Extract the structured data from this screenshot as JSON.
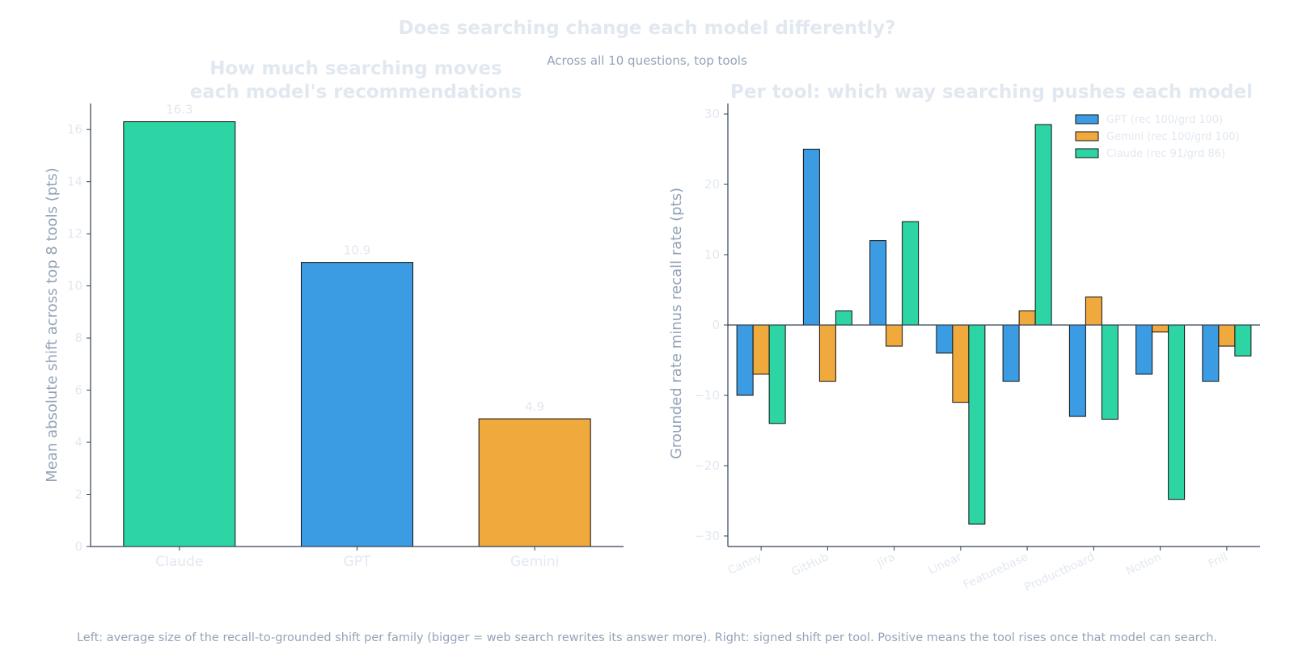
{
  "suptitle": "Does searching change each model differently?",
  "subtitle": "Across all 10 questions, top tools",
  "footnote": "Left: average size of the recall-to-grounded shift per family (bigger = web search rewrites its answer more). Right: signed shift per tool. Positive means the tool rises once that model can search.",
  "colors": {
    "GPT": "#3b9ce3",
    "Gemini": "#f0a93c",
    "Claude": "#2dd4a4"
  },
  "chart_data": [
    {
      "type": "bar",
      "title": "How much searching moves each model's recommendations",
      "title_lines": [
        "How much searching moves",
        "each model's recommendations"
      ],
      "ylabel": "Mean absolute shift across top 8 tools (pts)",
      "xlabel": "",
      "categories": [
        "Claude",
        "GPT",
        "Gemini"
      ],
      "values": [
        16.3,
        10.9,
        4.9
      ],
      "data_labels": [
        "16.3",
        "10.9",
        "4.9"
      ],
      "ylim": [
        0,
        17
      ],
      "yticks": [
        0,
        2,
        4,
        6,
        8,
        10,
        12,
        14,
        16
      ],
      "grid": false
    },
    {
      "type": "bar",
      "title": "Per tool: which way searching pushes each model",
      "ylabel": "Grounded rate minus recall rate (pts)",
      "xlabel": "",
      "categories": [
        "Canny",
        "GitHub",
        "Jira",
        "Linear",
        "Featurebase",
        "Productboard",
        "Notion",
        "Frill"
      ],
      "series": [
        {
          "name": "GPT (rec 100/grd 100)",
          "family": "GPT",
          "values": [
            -10,
            25,
            12,
            -4,
            -8,
            -13,
            -7,
            -8
          ]
        },
        {
          "name": "Gemini (rec 100/grd 100)",
          "family": "Gemini",
          "values": [
            -7,
            -8,
            -3,
            -11,
            2,
            4,
            -1,
            -3
          ]
        },
        {
          "name": "Claude (rec 91/grd 86)",
          "family": "Claude",
          "values": [
            -14,
            2,
            14.7,
            -28.3,
            28.5,
            -13.4,
            -24.8,
            -4.4
          ]
        }
      ],
      "ylim": [
        -31.5,
        31.5
      ],
      "yticks": [
        -30,
        -20,
        -10,
        0,
        10,
        20,
        30
      ],
      "grid": false,
      "legend": "top-right"
    }
  ]
}
